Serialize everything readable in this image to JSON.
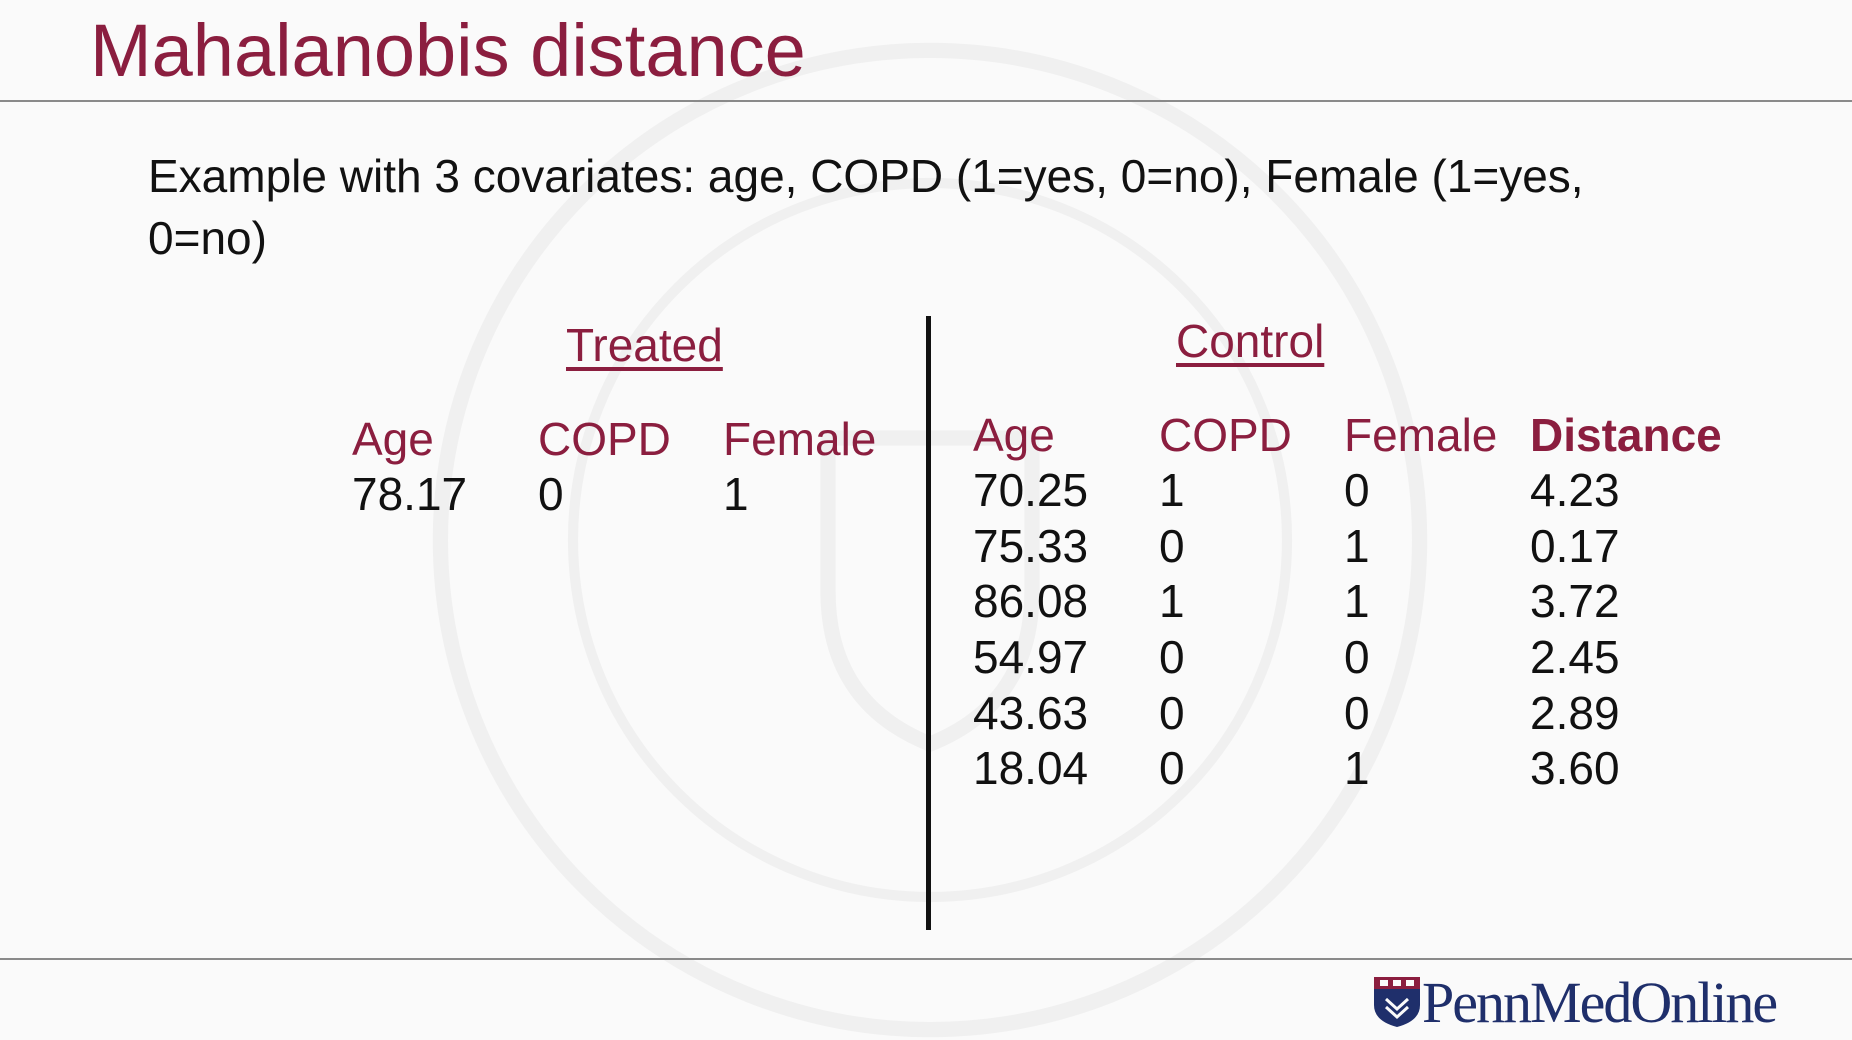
{
  "slide": {
    "title": "Mahalanobis distance",
    "intro": "Example with 3 covariates: age, COPD (1=yes, 0=no), Female (1=yes, 0=no)"
  },
  "treated": {
    "label": "Treated",
    "headers": [
      "Age",
      "COPD",
      "Female"
    ],
    "rows": [
      [
        "78.17",
        "0",
        "1"
      ]
    ]
  },
  "control": {
    "label": "Control",
    "headers": [
      "Age",
      "COPD",
      "Female",
      "Distance"
    ],
    "rows": [
      [
        "70.25",
        "1",
        "0",
        "4.23"
      ],
      [
        "75.33",
        "0",
        "1",
        "0.17"
      ],
      [
        "86.08",
        "1",
        "1",
        "3.72"
      ],
      [
        "54.97",
        "0",
        "0",
        "2.45"
      ],
      [
        "43.63",
        "0",
        "0",
        "2.89"
      ],
      [
        "18.04",
        "0",
        "1",
        "3.60"
      ]
    ]
  },
  "footer": {
    "logo_text": "PennMedOnline"
  },
  "colors": {
    "accent": "#8b1e3f",
    "text": "#111111",
    "logo": "#1f2f6b",
    "rule": "#8a8a8a"
  },
  "icons": {
    "logo_mark": "penn-shield-icon"
  }
}
